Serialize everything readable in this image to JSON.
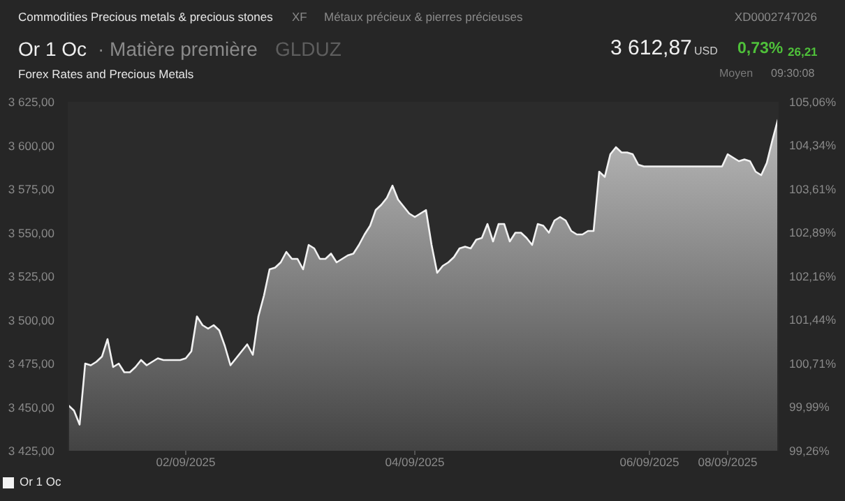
{
  "chart_data": {
    "type": "area",
    "title": "Commodities Precious metals & precious stones",
    "subtitle": "Forex Rates and Precious Metals",
    "annotations": [
      "XF",
      "Métaux précieux & pierres précieuses",
      "XD0002747026",
      "Or 1 Oc",
      "· Matière première",
      "GLDUZ",
      "3 612,87",
      "USD",
      "0,73%",
      "26,21",
      "Moyen",
      "09:30:08"
    ],
    "categories": [
      null,
      null,
      null,
      null,
      null,
      null,
      null,
      null,
      null,
      null,
      null,
      null,
      null,
      null,
      null,
      null,
      null,
      null,
      null,
      null,
      null,
      "02/09/2025",
      null,
      null,
      null,
      null,
      null,
      null,
      null,
      null,
      null,
      null,
      null,
      null,
      null,
      null,
      null,
      null,
      null,
      null,
      null,
      null,
      null,
      null,
      null,
      null,
      null,
      null,
      null,
      null,
      null,
      null,
      null,
      null,
      null,
      null,
      null,
      null,
      null,
      null,
      null,
      null,
      "04/09/2025",
      null,
      null,
      null,
      null,
      null,
      null,
      null,
      null,
      null,
      null,
      null,
      null,
      null,
      null,
      null,
      null,
      null,
      null,
      null,
      null,
      null,
      null,
      null,
      null,
      null,
      null,
      null,
      null,
      null,
      null,
      null,
      null,
      null,
      null,
      null,
      null,
      null,
      null,
      null,
      null,
      null,
      "06/09/2025",
      null,
      null,
      null,
      null,
      null,
      null,
      null,
      null,
      null,
      null,
      null,
      null,
      null,
      "08/09/2025",
      null,
      null,
      null,
      null,
      null,
      null,
      null,
      null,
      null
    ],
    "series": [
      {
        "name": "Or 1 Oc",
        "color": "#f2f2f2",
        "values": [
          3451,
          3448,
          3440,
          3475,
          3474,
          3476,
          3479,
          3489,
          3473,
          3475,
          3470,
          3470,
          3473,
          3477,
          3474,
          3476,
          3478,
          3477,
          3477,
          3477,
          3477,
          3478,
          3482,
          3502,
          3497,
          3495,
          3497,
          3494,
          3485,
          3474,
          3478,
          3482,
          3486,
          3480,
          3502,
          3514,
          3529,
          3530,
          3533,
          3539,
          3535,
          3535,
          3529,
          3543,
          3541,
          3535,
          3535,
          3538,
          3533,
          3535,
          3537,
          3538,
          3543,
          3549,
          3554,
          3563,
          3566,
          3570,
          3577,
          3569,
          3565,
          3561,
          3559,
          3561,
          3563,
          3543,
          3527,
          3531,
          3533,
          3536,
          3541,
          3542,
          3541,
          3546,
          3547,
          3555,
          3545,
          3555,
          3555,
          3545,
          3550,
          3550,
          3547,
          3543,
          3555,
          3554,
          3550,
          3557,
          3559,
          3557,
          3551,
          3549,
          3549,
          3551,
          3551,
          3585,
          3582,
          3595,
          3599,
          3596,
          3596,
          3595,
          3589,
          3588,
          3588,
          3588,
          3588,
          3588,
          3588,
          3588,
          3588,
          3588,
          3588,
          3588,
          3588,
          3588,
          3588,
          3588,
          3595,
          3593,
          3591,
          3592,
          3591,
          3585,
          3583,
          3590,
          3603,
          3615
        ]
      }
    ],
    "ylim": [
      3425,
      3625
    ],
    "yticks": [
      {
        "value": 3425,
        "label": "3 425,00"
      },
      {
        "value": 3450,
        "label": "3 450,00"
      },
      {
        "value": 3475,
        "label": "3 475,00"
      },
      {
        "value": 3500,
        "label": "3 500,00"
      },
      {
        "value": 3525,
        "label": "3 525,00"
      },
      {
        "value": 3550,
        "label": "3 550,00"
      },
      {
        "value": 3575,
        "label": "3 575,00"
      },
      {
        "value": 3600,
        "label": "3 600,00"
      },
      {
        "value": 3625,
        "label": "3 625,00"
      }
    ],
    "y2lim": [
      99.26,
      105.06
    ],
    "y2ticks": [
      {
        "value": 99.26,
        "label": "99,26%"
      },
      {
        "value": 99.99,
        "label": "99,99%"
      },
      {
        "value": 100.71,
        "label": "100,71%"
      },
      {
        "value": 101.44,
        "label": "101,44%"
      },
      {
        "value": 102.16,
        "label": "102,16%"
      },
      {
        "value": 102.89,
        "label": "102,89%"
      },
      {
        "value": 103.61,
        "label": "103,61%"
      },
      {
        "value": 104.34,
        "label": "104,34%"
      },
      {
        "value": 105.06,
        "label": "105,06%"
      }
    ],
    "grid": false,
    "legend": "bottom left"
  }
}
